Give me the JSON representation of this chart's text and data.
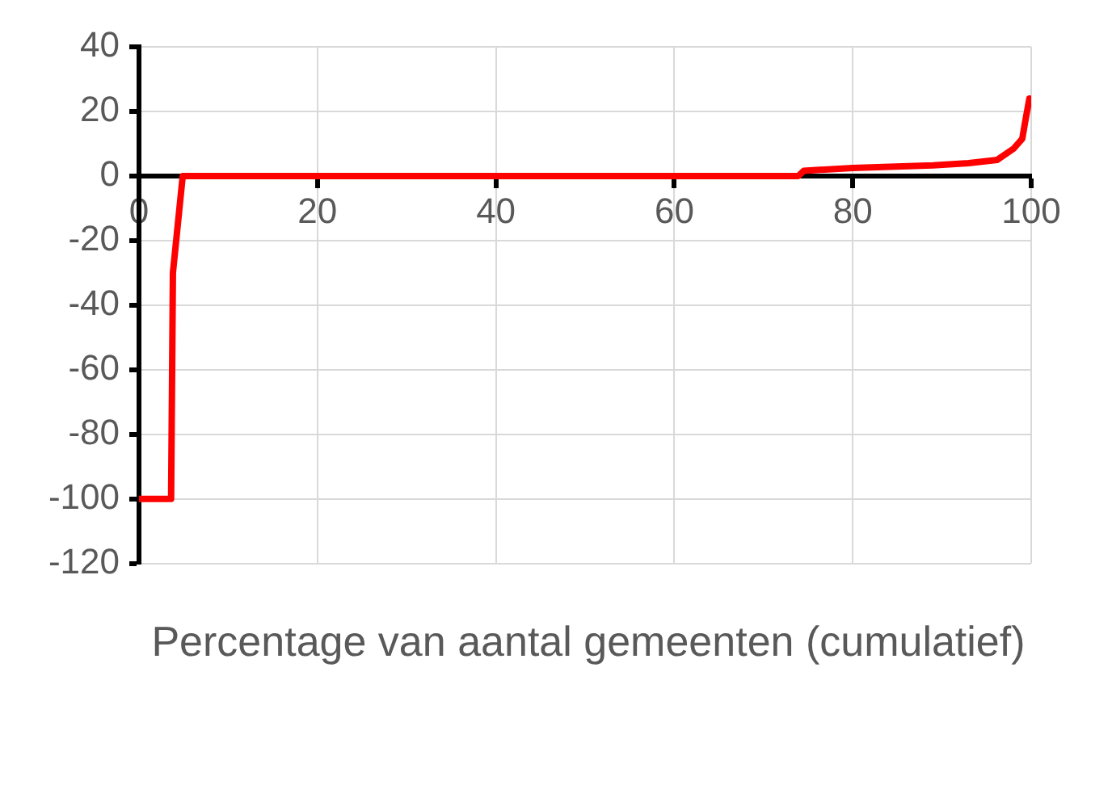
{
  "chart_data": {
    "type": "line",
    "xlabel": "Percentage van aantal gemeenten (cumulatief)",
    "x": [
      0,
      3.6,
      3.8,
      4.9,
      10,
      30,
      50,
      70,
      73.9,
      74.5,
      80,
      89,
      93,
      96.2,
      98,
      99,
      99.3,
      99.8
    ],
    "series": [
      {
        "color": "#ff0000",
        "values": [
          -100,
          -100,
          -30,
          0,
          0,
          0,
          0,
          0,
          0,
          1.6,
          2.5,
          3.3,
          4,
          5,
          8.4,
          11.5,
          16.4,
          24
        ]
      }
    ],
    "xlim": [
      0,
      100
    ],
    "xticks": [
      0,
      20,
      40,
      60,
      80,
      100
    ],
    "ylim": [
      -120,
      40
    ],
    "yticks": [
      -120,
      -100,
      -80,
      -60,
      -40,
      -20,
      0,
      20,
      40
    ],
    "grid": true,
    "legend": false,
    "marker": "none",
    "line_style": "solid"
  }
}
